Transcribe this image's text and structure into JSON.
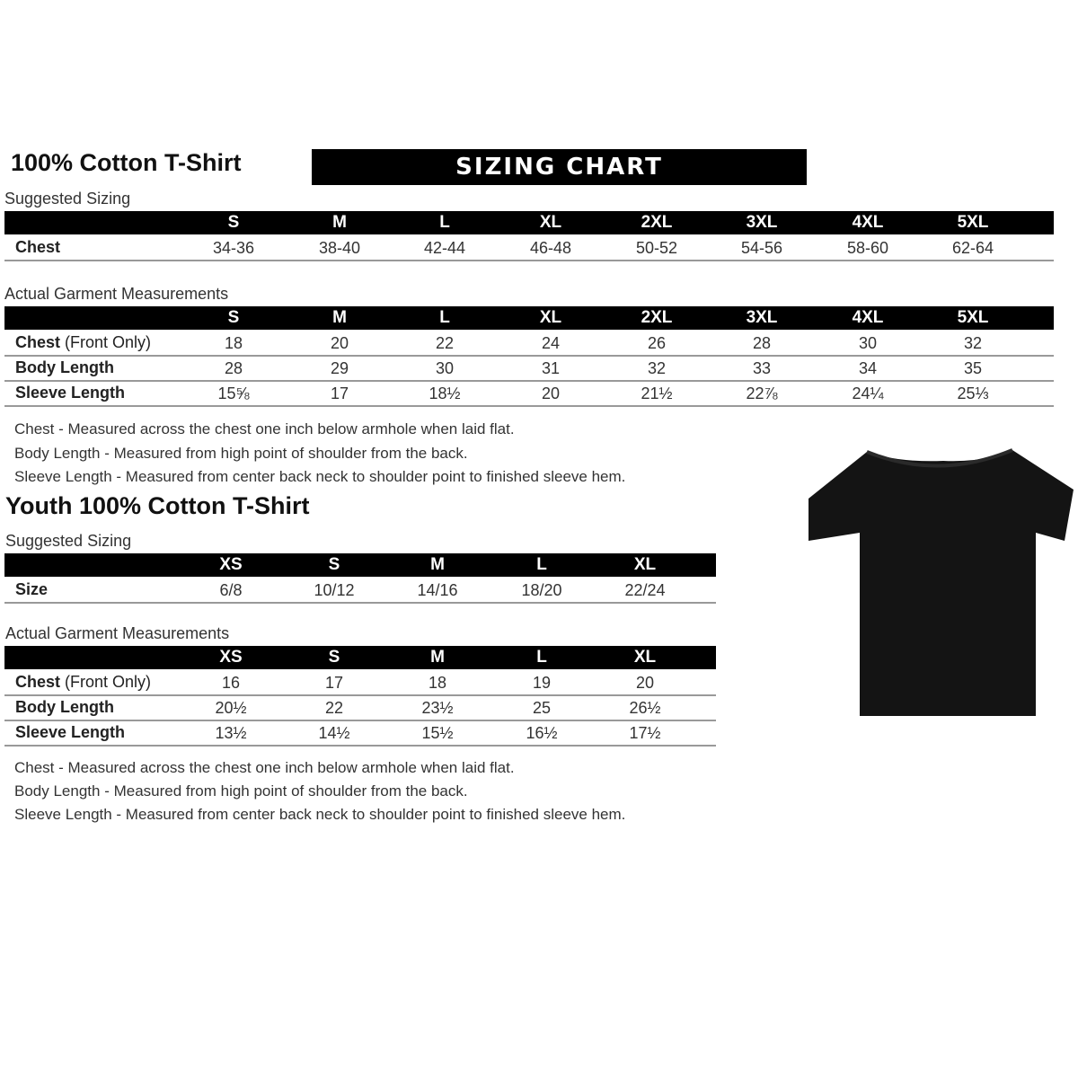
{
  "banner": "SIZING CHART",
  "adult": {
    "title": "100% Cotton T-Shirt",
    "suggested_label": "Suggested Sizing",
    "sizes": [
      "S",
      "M",
      "L",
      "XL",
      "2XL",
      "3XL",
      "4XL",
      "5XL"
    ],
    "suggested_rows": [
      {
        "label": "Chest",
        "extra": "",
        "values": [
          "34-36",
          "38-40",
          "42-44",
          "46-48",
          "50-52",
          "54-56",
          "58-60",
          "62-64"
        ]
      }
    ],
    "actual_label": "Actual Garment Measurements",
    "actual_rows": [
      {
        "label": "Chest",
        "extra": " (Front Only)",
        "values": [
          "18",
          "20",
          "22",
          "24",
          "26",
          "28",
          "30",
          "32"
        ]
      },
      {
        "label": "Body Length",
        "extra": "",
        "values": [
          "28",
          "29",
          "30",
          "31",
          "32",
          "33",
          "34",
          "35"
        ]
      },
      {
        "label": "Sleeve Length",
        "extra": "",
        "values": [
          "15⅝",
          "17",
          "18½",
          "20",
          "21½",
          "22⅞",
          "24¼",
          "25⅓"
        ]
      }
    ],
    "notes": [
      "Chest - Measured across the chest one inch below armhole when laid flat.",
      "Body Length - Measured from high point of shoulder from the back.",
      "Sleeve Length - Measured from center back neck to shoulder point to finished sleeve hem."
    ]
  },
  "youth": {
    "title": "Youth 100% Cotton T-Shirt",
    "suggested_label": "Suggested Sizing",
    "sizes": [
      "XS",
      "S",
      "M",
      "L",
      "XL"
    ],
    "suggested_rows": [
      {
        "label": "Size",
        "extra": "",
        "values": [
          "6/8",
          "10/12",
          "14/16",
          "18/20",
          "22/24"
        ]
      }
    ],
    "actual_label": "Actual Garment Measurements",
    "actual_rows": [
      {
        "label": "Chest",
        "extra": " (Front Only)",
        "values": [
          "16",
          "17",
          "18",
          "19",
          "20"
        ]
      },
      {
        "label": "Body Length",
        "extra": "",
        "values": [
          "20½",
          "22",
          "23½",
          "25",
          "26½"
        ]
      },
      {
        "label": "Sleeve Length",
        "extra": "",
        "values": [
          "13½",
          "14½",
          "15½",
          "16½",
          "17½"
        ]
      }
    ],
    "notes": [
      "Chest - Measured across the chest one inch below armhole when laid flat.",
      "Body Length - Measured from high point of shoulder from the back.",
      "Sleeve Length - Measured from center back neck to shoulder point to finished sleeve hem."
    ]
  },
  "colors": {
    "header_bar": "#000000",
    "shirt": "#111111"
  }
}
